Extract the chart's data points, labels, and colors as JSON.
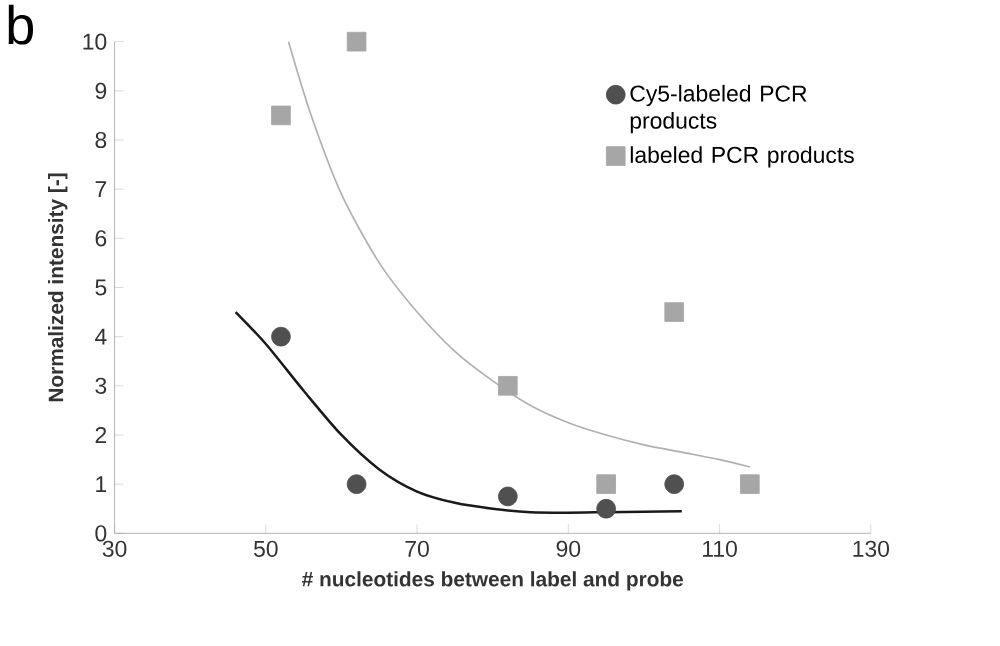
{
  "chart_data": {
    "type": "scatter",
    "xlabel": "# nucleotides between label and probe",
    "ylabel": "Normalized intensity [-]",
    "annotations": [
      "b"
    ],
    "xlim": [
      30,
      130
    ],
    "xticks": [
      30,
      50,
      70,
      90,
      110,
      130
    ],
    "ylim": [
      0,
      10
    ],
    "yticks": [
      0,
      1,
      2,
      3,
      4,
      5,
      6,
      7,
      8,
      9,
      10
    ],
    "legend": "top right",
    "grid": false,
    "series": [
      {
        "name": "Cy5-labeled PCR products",
        "marker": "circle",
        "color": "#505050",
        "x": [
          52,
          62,
          82,
          95,
          104
        ],
        "values": [
          4,
          1,
          0.75,
          0.5,
          1
        ]
      },
      {
        "name": "labeled PCR products",
        "marker": "square",
        "color": "#a6a6a6",
        "x": [
          52,
          62,
          82,
          95,
          104,
          114
        ],
        "values": [
          8.5,
          10,
          3,
          1,
          4.5,
          1
        ]
      },
      {
        "type": "line",
        "color": "#1a1a1a",
        "x": [
          46,
          50,
          55,
          60,
          65,
          70,
          75,
          80,
          85,
          90,
          95,
          100,
          105
        ],
        "values": [
          4.5,
          3.85,
          2.9,
          2.0,
          1.3,
          0.85,
          0.62,
          0.5,
          0.43,
          0.42,
          0.43,
          0.44,
          0.45
        ]
      },
      {
        "type": "line",
        "color": "#b0b0b0",
        "x": [
          53,
          56,
          60,
          65,
          70,
          75,
          80,
          85,
          90,
          95,
          100,
          105,
          110,
          114
        ],
        "values": [
          10,
          8.5,
          6.9,
          5.5,
          4.5,
          3.7,
          3.1,
          2.6,
          2.25,
          2.0,
          1.8,
          1.65,
          1.5,
          1.35
        ]
      }
    ]
  }
}
